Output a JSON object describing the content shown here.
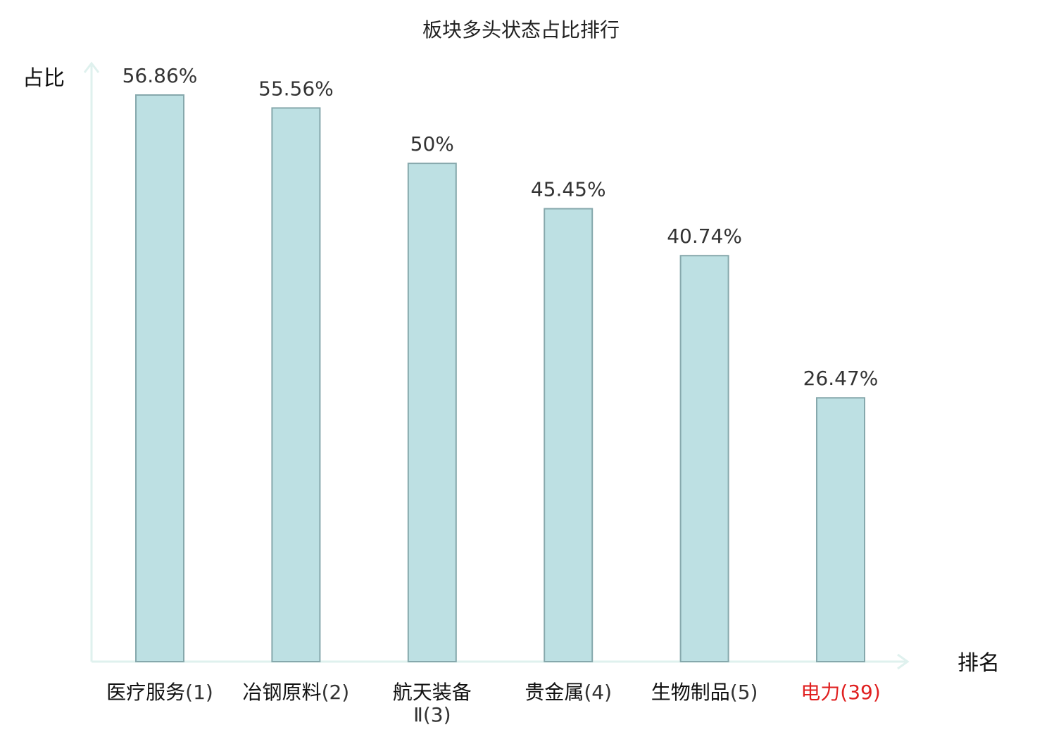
{
  "chart_data": {
    "type": "bar",
    "title": "板块多头状态占比排行",
    "xlabel": "排名",
    "ylabel": "占比",
    "ylim": [
      0,
      60
    ],
    "grid": false,
    "categories": [
      {
        "name": "医疗服务",
        "rank": "(1)",
        "highlight": false
      },
      {
        "name": "冶钢原料",
        "rank": "(2)",
        "highlight": false
      },
      {
        "name": "航天装备Ⅱ",
        "rank": "(3)",
        "highlight": false
      },
      {
        "name": "贵金属",
        "rank": "(4)",
        "highlight": false
      },
      {
        "name": "生物制品",
        "rank": "(5)",
        "highlight": false
      },
      {
        "name": "电力",
        "rank": "(39)",
        "highlight": true
      }
    ],
    "values": [
      56.86,
      55.56,
      50,
      45.45,
      40.74,
      26.47
    ],
    "value_labels": [
      "56.86%",
      "55.56%",
      "50%",
      "45.45%",
      "40.74%",
      "26.47%"
    ],
    "colors": {
      "bar_fill": "#bde0e3",
      "bar_stroke": "#86a8ac",
      "axis": "#dff1ee",
      "highlight_text": "#e02020"
    }
  }
}
